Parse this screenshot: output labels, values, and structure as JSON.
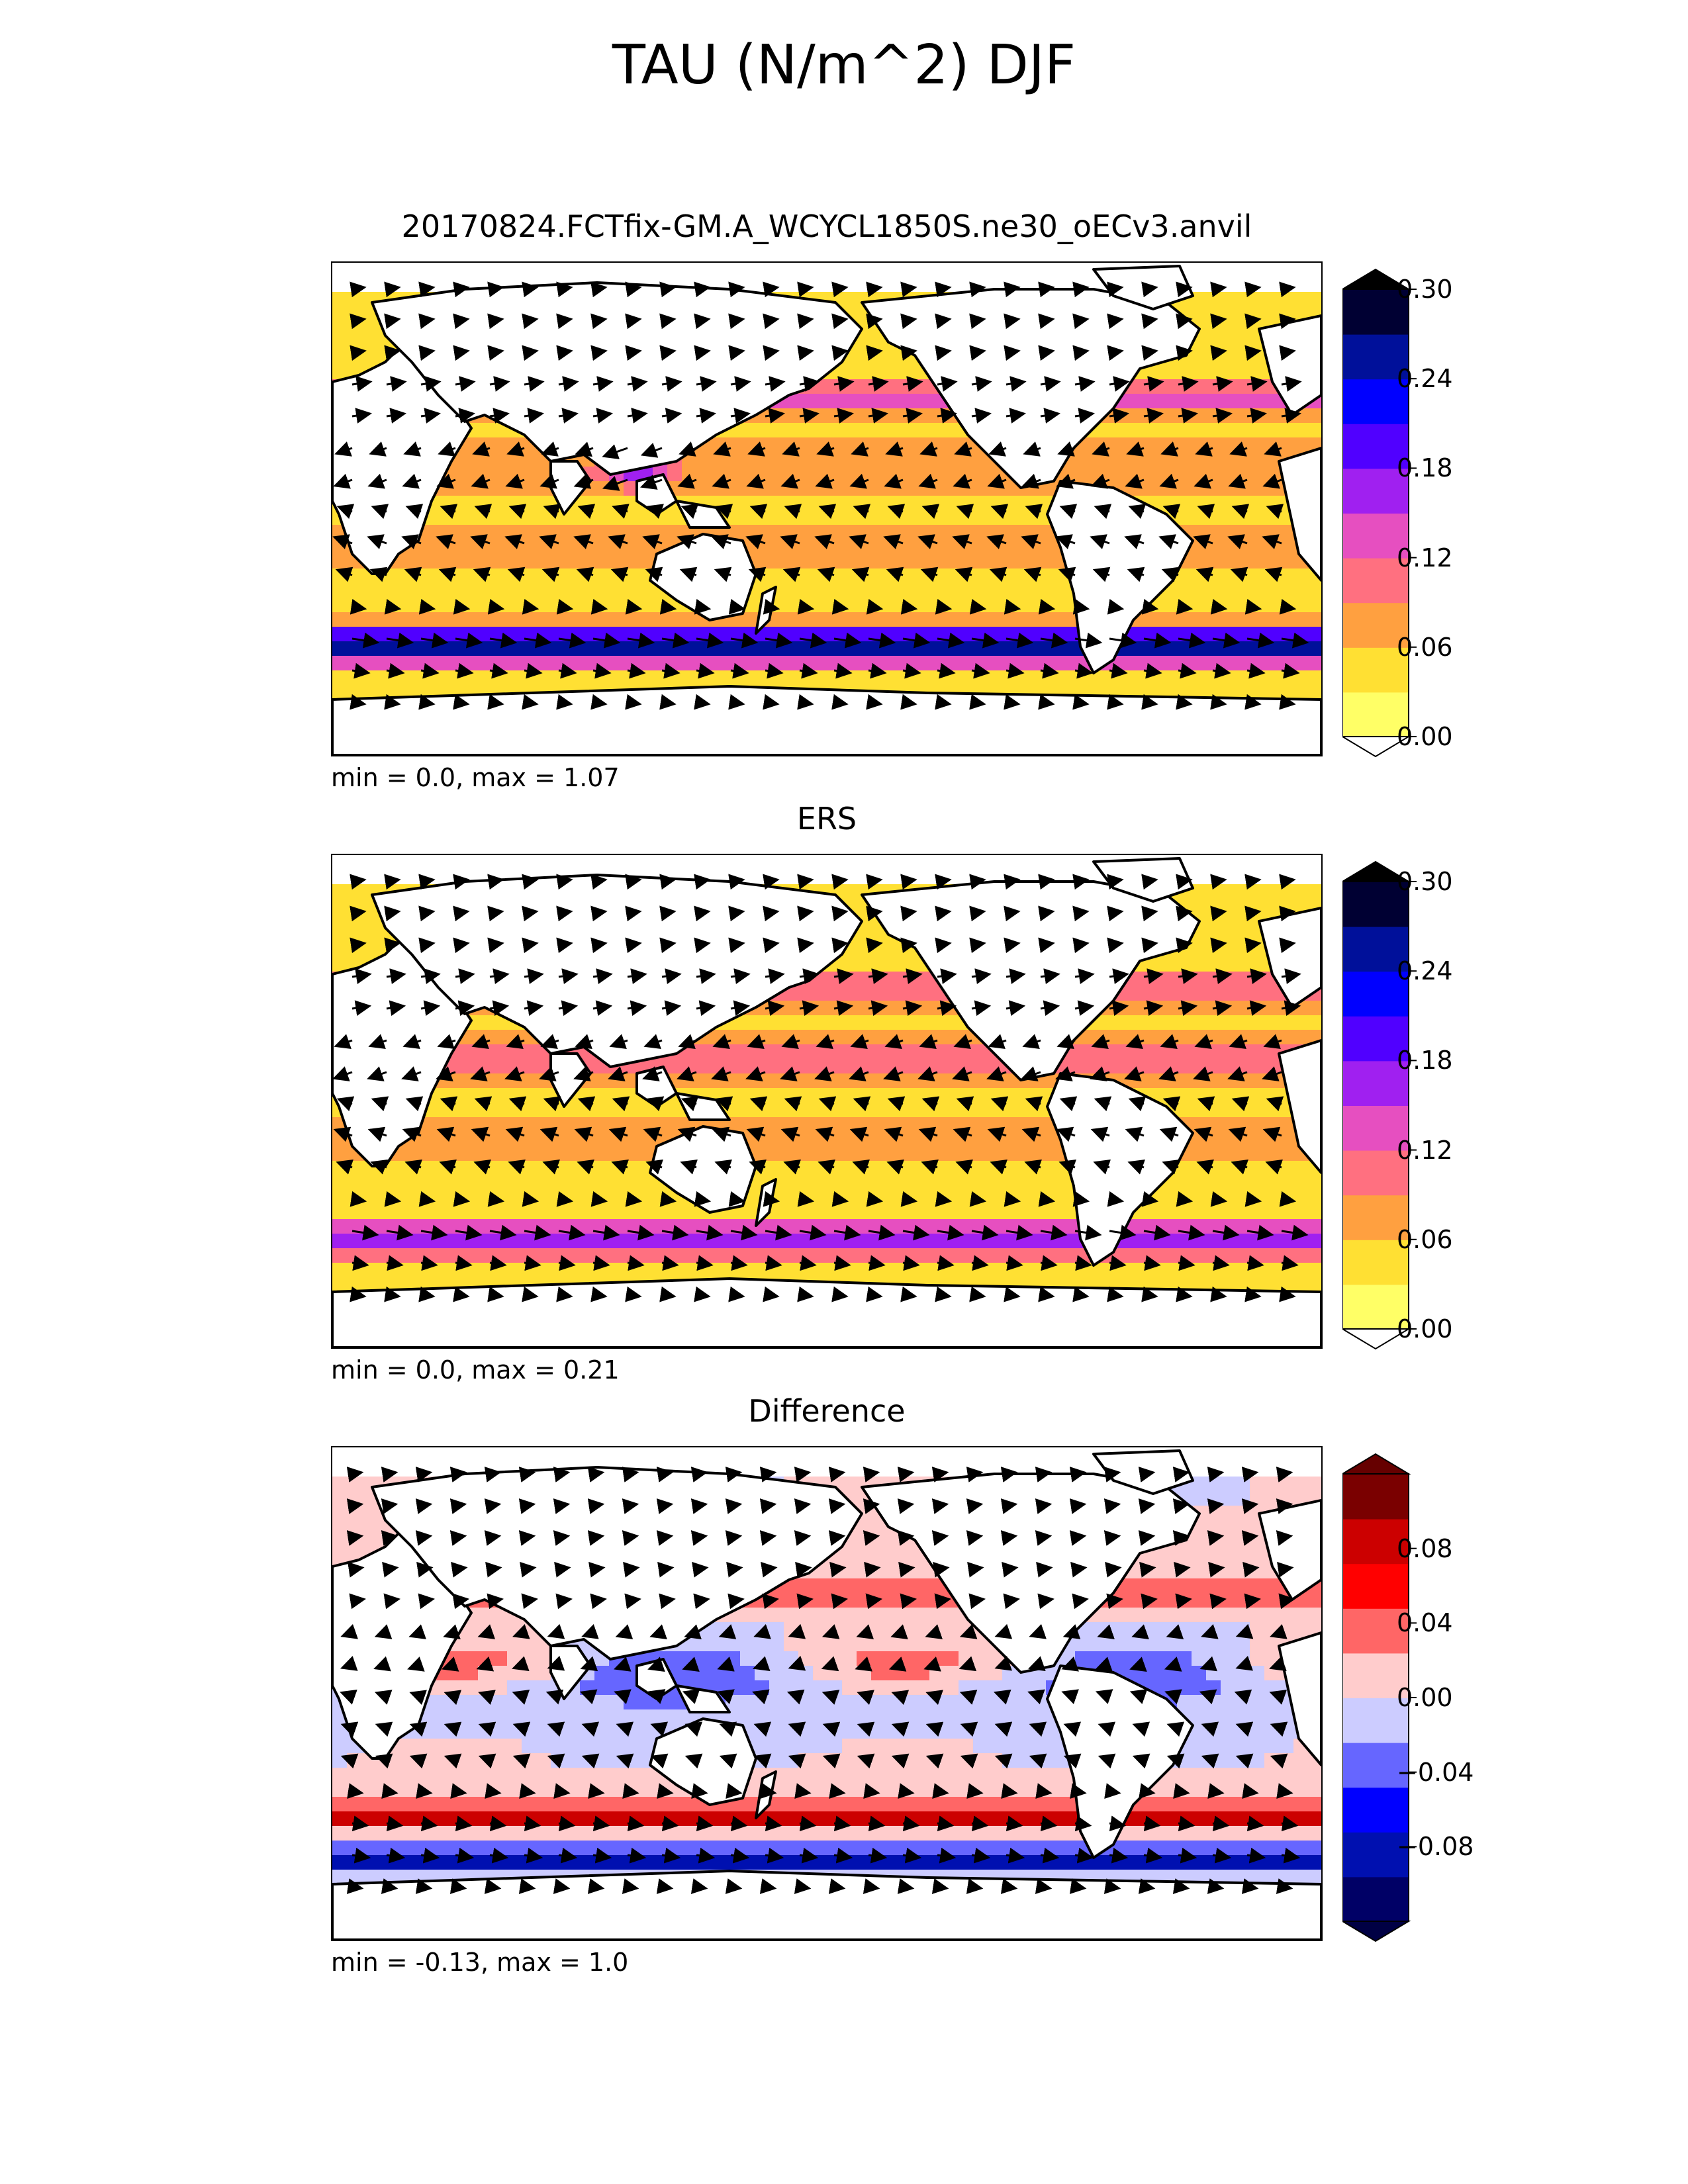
{
  "title": "TAU (N/m^2) DJF",
  "panels": [
    {
      "title": "20170824.FCTfix-GM.A_WCYCL1850S.ne30_oECv3.anvil",
      "stats": "min = 0.0, max = 1.07",
      "colormap": [
        "#ffff66",
        "#ffe033",
        "#ffa040",
        "#ff7080",
        "#e64fc0",
        "#a020f0",
        "#5000ff",
        "#0000ff",
        "#00109a",
        "#000033"
      ],
      "under_color": "#ffffff",
      "over_color": "#000000",
      "ticks": [
        "0.30",
        "0.24",
        "0.18",
        "0.12",
        "0.06",
        "0.00"
      ]
    },
    {
      "title": "ERS",
      "stats": "min = 0.0, max = 0.21",
      "colormap": [
        "#ffff66",
        "#ffe033",
        "#ffa040",
        "#ff7080",
        "#e64fc0",
        "#a020f0",
        "#5000ff",
        "#0000ff",
        "#00109a",
        "#000033"
      ],
      "under_color": "#ffffff",
      "over_color": "#000000",
      "ticks": [
        "0.30",
        "0.24",
        "0.18",
        "0.12",
        "0.06",
        "0.00"
      ]
    },
    {
      "title": "Difference",
      "stats": "min = -0.13, max = 1.0",
      "colormap": [
        "#000066",
        "#0010b0",
        "#0000ff",
        "#6666ff",
        "#ccccff",
        "#ffcccc",
        "#ff6666",
        "#ff0000",
        "#cc0000",
        "#7a0000"
      ],
      "under_color": "#000044",
      "over_color": "#660000",
      "ticks": [
        "0.08",
        "0.04",
        "0.00",
        "−0.04",
        "−0.08"
      ]
    }
  ]
}
